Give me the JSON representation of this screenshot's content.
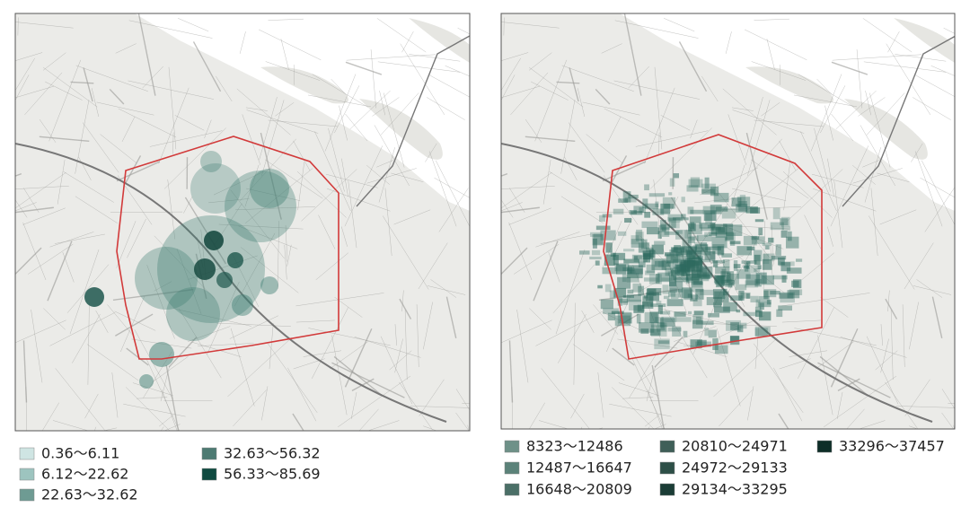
{
  "maps": [
    {
      "legend": [
        {
          "label": "0.36～6.11",
          "color": "#cfe5e3"
        },
        {
          "label": "6.12～22.62",
          "color": "#9dc4bf"
        },
        {
          "label": "22.63～32.62",
          "color": "#6e9b93"
        },
        {
          "label": "32.63～56.32",
          "color": "#4d7a72"
        },
        {
          "label": "56.33～85.69",
          "color": "#0f4a40"
        }
      ]
    },
    {
      "legend": [
        {
          "label": "8323～12486",
          "color": "#6e9188"
        },
        {
          "label": "12487～16647",
          "color": "#5b8279"
        },
        {
          "label": "16648～20809",
          "color": "#4b6f67"
        },
        {
          "label": "20810～24971",
          "color": "#3f5f58"
        },
        {
          "label": "24972～29133",
          "color": "#2d4f47"
        },
        {
          "label": "29134～33295",
          "color": "#1b3d36"
        },
        {
          "label": "33296～37457",
          "color": "#0e2e28"
        }
      ]
    }
  ]
}
